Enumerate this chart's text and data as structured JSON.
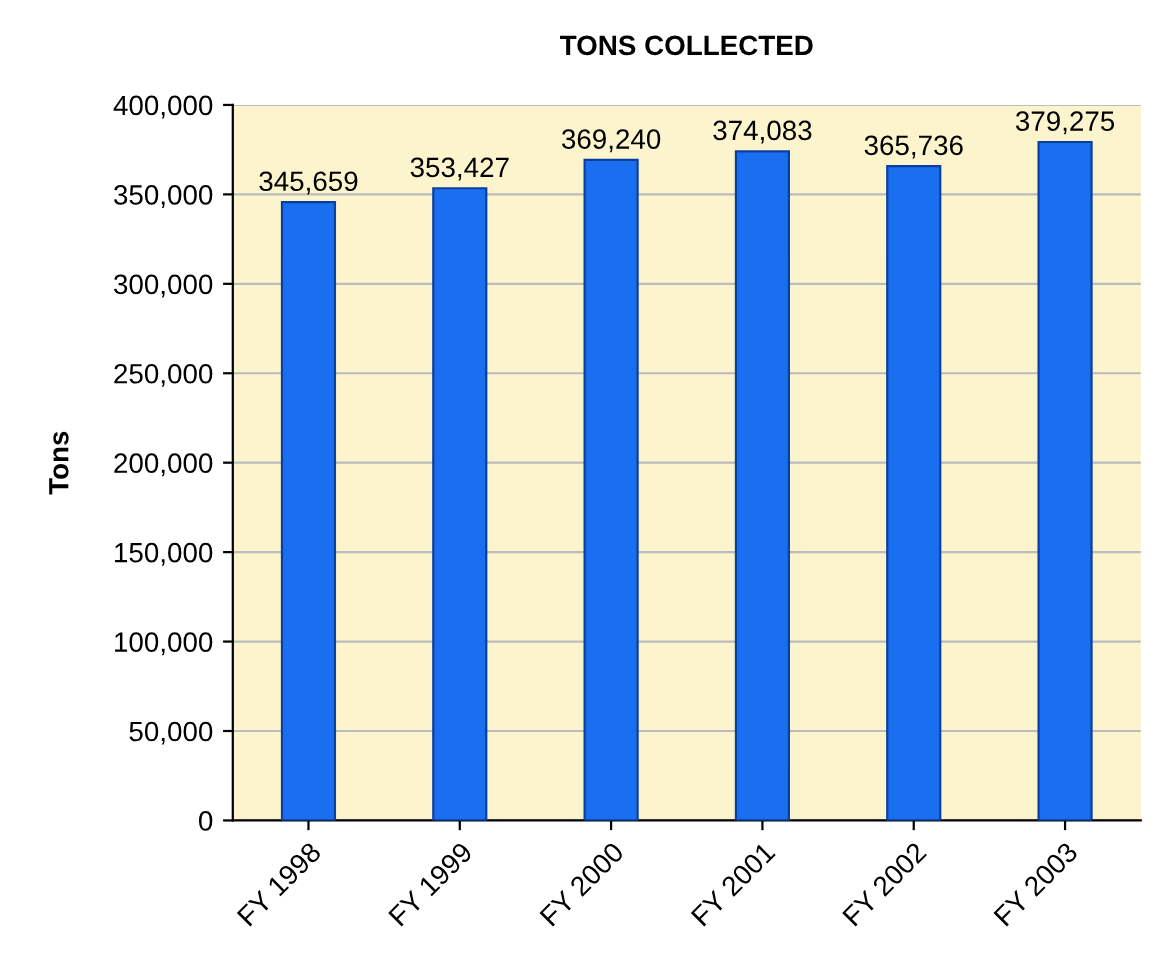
{
  "chart_data": {
    "type": "bar",
    "title": "TONS COLLECTED",
    "ylabel": "Tons",
    "categories": [
      "FY 1998",
      "FY 1999",
      "FY 2000",
      "FY 2001",
      "FY 2002",
      "FY 2003"
    ],
    "values": [
      345659,
      353427,
      369240,
      374083,
      365736,
      379275
    ],
    "value_labels": [
      "345,659",
      "353,427",
      "369,240",
      "374,083",
      "365,736",
      "379,275"
    ],
    "color": "#1a6ff0",
    "ylim": [
      0,
      400000
    ],
    "yticks": [
      0,
      {
        "value": 50000,
        "label": "50,000"
      },
      {
        "value": 100000,
        "label": "100,000"
      },
      {
        "value": 150000,
        "label": "150,000"
      },
      {
        "value": 200000,
        "label": "200,000"
      },
      {
        "value": 250000,
        "label": "250,000"
      },
      {
        "value": 300000,
        "label": "300,000"
      },
      {
        "value": 350000,
        "label": "350,000"
      },
      {
        "value": 400000,
        "label": "400,000"
      }
    ],
    "grid": "y",
    "legend": false
  }
}
